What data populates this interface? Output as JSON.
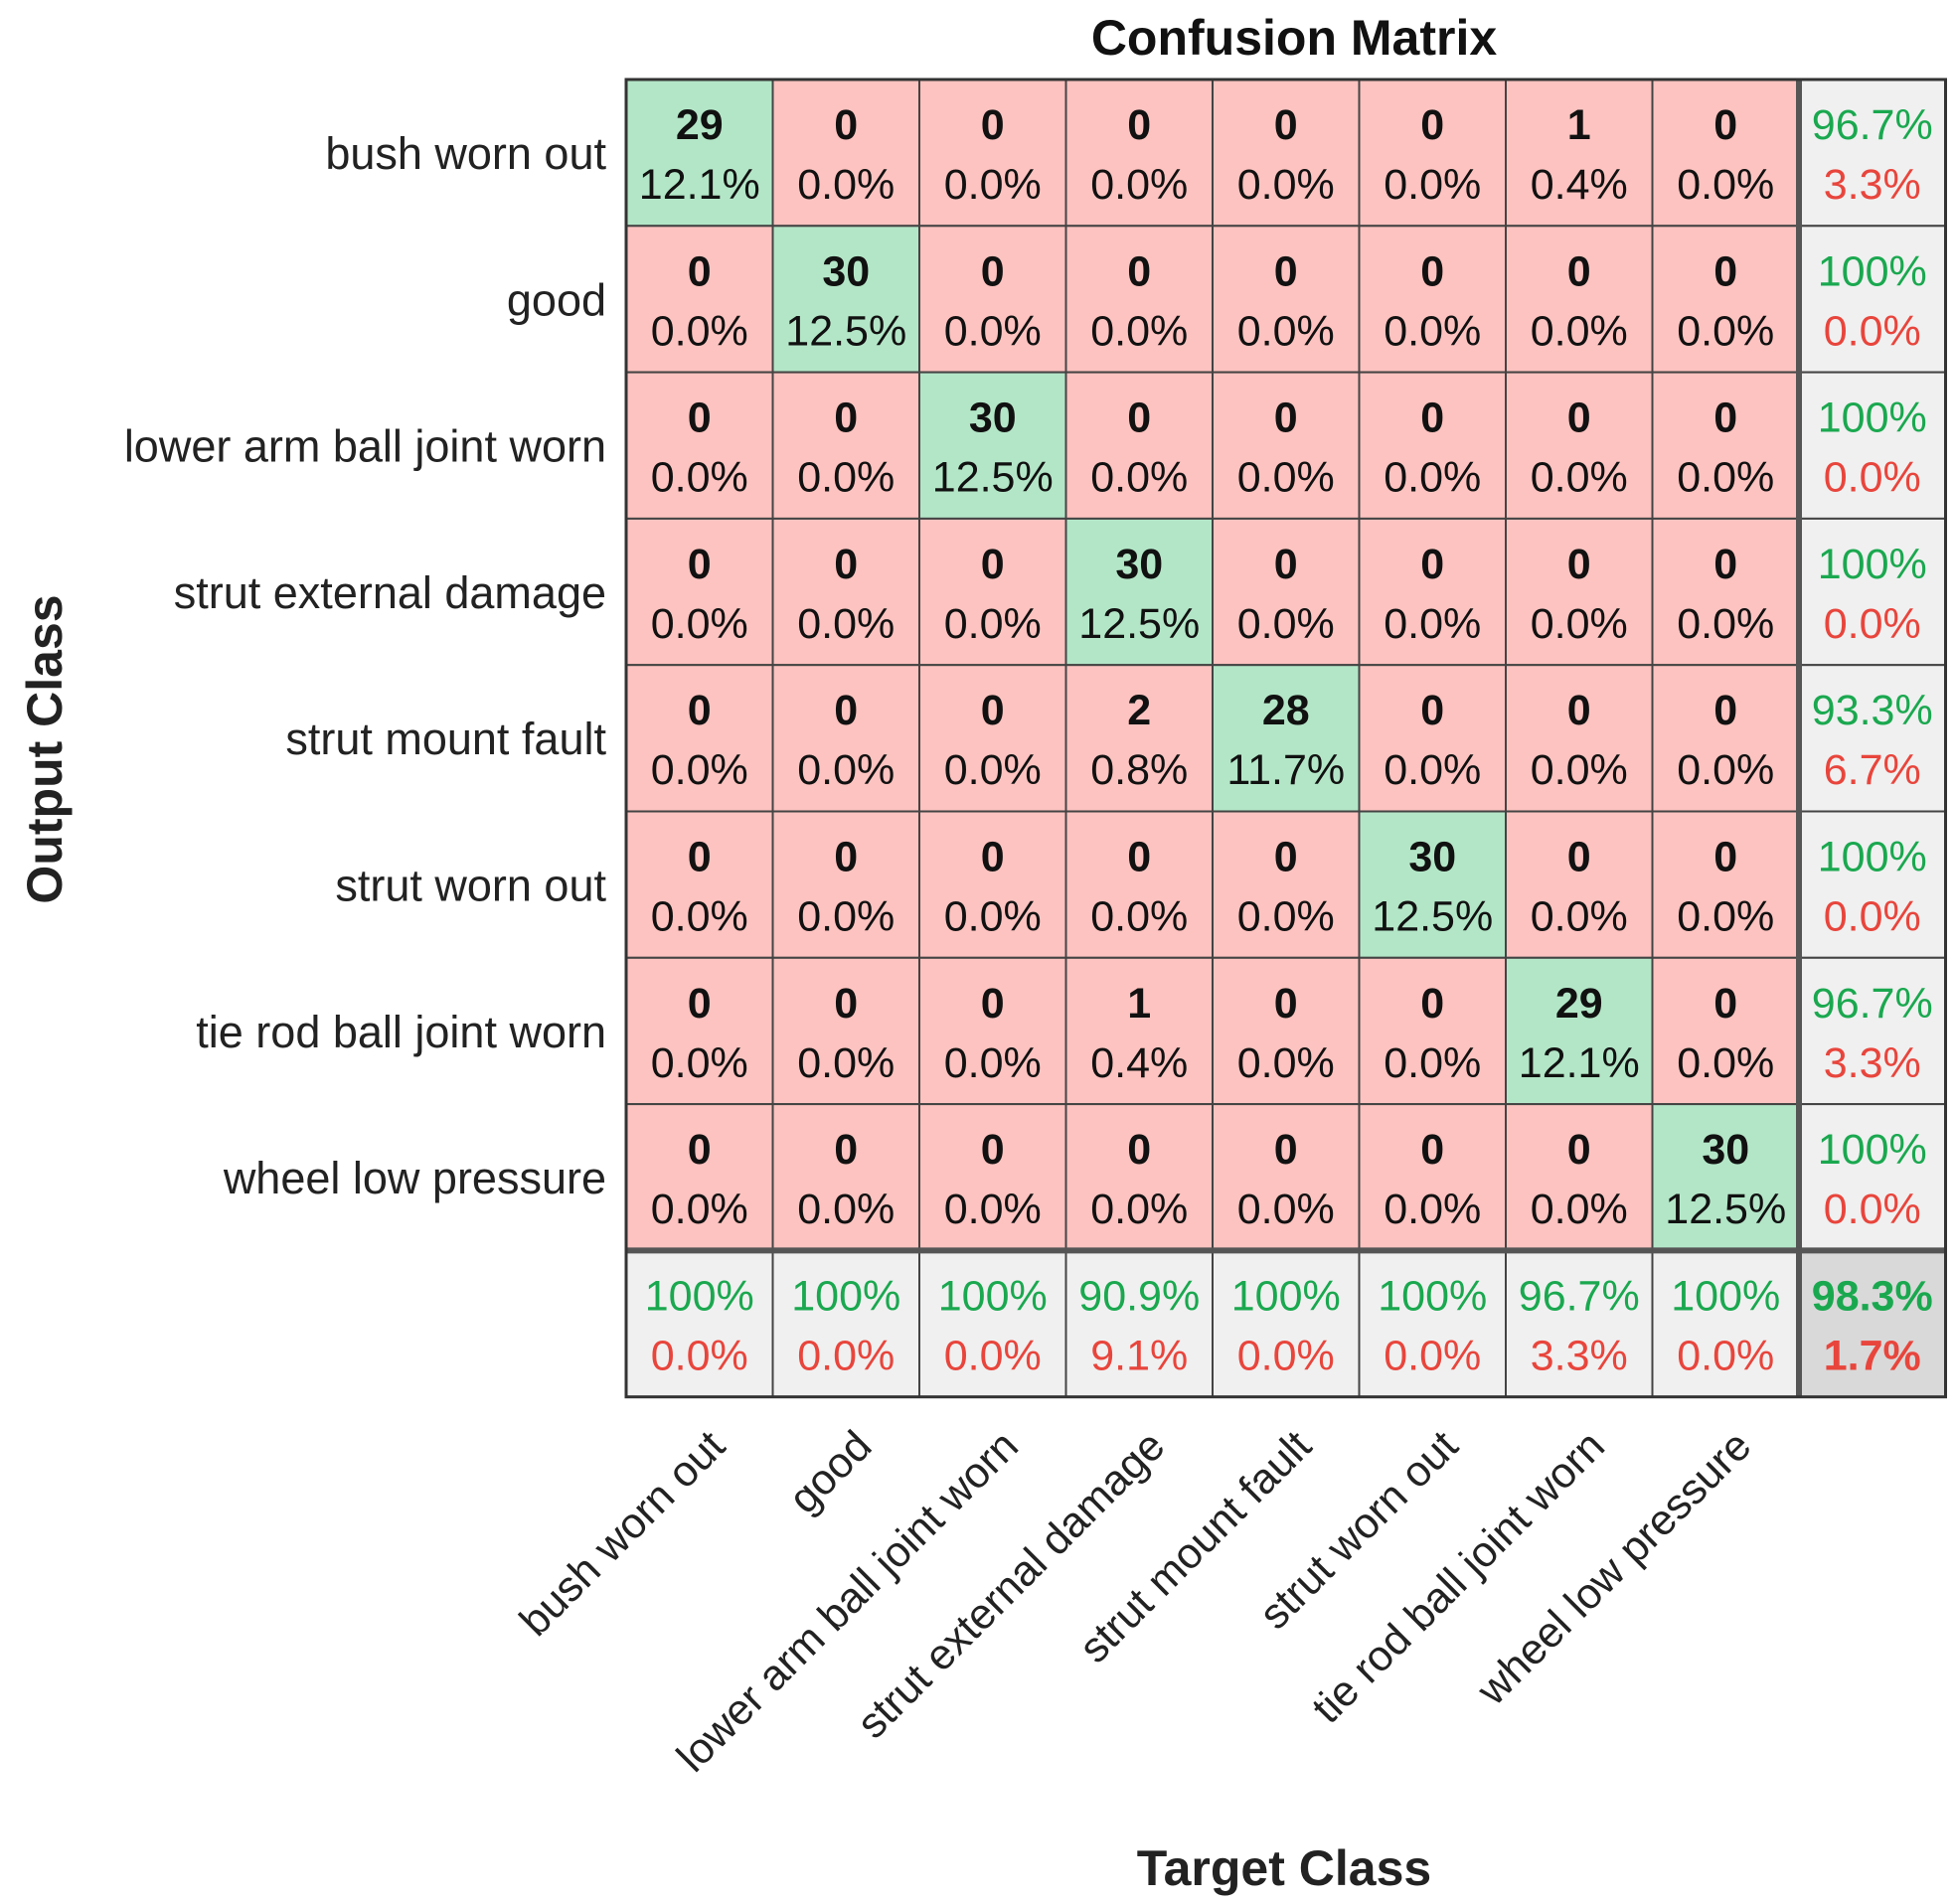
{
  "chart_data": {
    "type": "heatmap",
    "title": "Confusion Matrix",
    "xlabel": "Target Class",
    "ylabel": "Output Class",
    "classes": [
      "bush worn out",
      "good",
      "lower arm ball joint worn",
      "strut external damage",
      "strut mount fault",
      "strut worn out",
      "tie rod ball joint worn",
      "wheel low pressure"
    ],
    "counts": [
      [
        29,
        0,
        0,
        0,
        0,
        0,
        1,
        0
      ],
      [
        0,
        30,
        0,
        0,
        0,
        0,
        0,
        0
      ],
      [
        0,
        0,
        30,
        0,
        0,
        0,
        0,
        0
      ],
      [
        0,
        0,
        0,
        30,
        0,
        0,
        0,
        0
      ],
      [
        0,
        0,
        0,
        2,
        28,
        0,
        0,
        0
      ],
      [
        0,
        0,
        0,
        0,
        0,
        30,
        0,
        0
      ],
      [
        0,
        0,
        0,
        1,
        0,
        0,
        29,
        0
      ],
      [
        0,
        0,
        0,
        0,
        0,
        0,
        0,
        30
      ]
    ],
    "percents": [
      [
        "12.1%",
        "0.0%",
        "0.0%",
        "0.0%",
        "0.0%",
        "0.0%",
        "0.4%",
        "0.0%"
      ],
      [
        "0.0%",
        "12.5%",
        "0.0%",
        "0.0%",
        "0.0%",
        "0.0%",
        "0.0%",
        "0.0%"
      ],
      [
        "0.0%",
        "0.0%",
        "12.5%",
        "0.0%",
        "0.0%",
        "0.0%",
        "0.0%",
        "0.0%"
      ],
      [
        "0.0%",
        "0.0%",
        "0.0%",
        "12.5%",
        "0.0%",
        "0.0%",
        "0.0%",
        "0.0%"
      ],
      [
        "0.0%",
        "0.0%",
        "0.0%",
        "0.8%",
        "11.7%",
        "0.0%",
        "0.0%",
        "0.0%"
      ],
      [
        "0.0%",
        "0.0%",
        "0.0%",
        "0.0%",
        "0.0%",
        "12.5%",
        "0.0%",
        "0.0%"
      ],
      [
        "0.0%",
        "0.0%",
        "0.0%",
        "0.4%",
        "0.0%",
        "0.0%",
        "12.1%",
        "0.0%"
      ],
      [
        "0.0%",
        "0.0%",
        "0.0%",
        "0.0%",
        "0.0%",
        "0.0%",
        "0.0%",
        "12.5%"
      ]
    ],
    "row_summary": [
      [
        "96.7%",
        "3.3%"
      ],
      [
        "100%",
        "0.0%"
      ],
      [
        "100%",
        "0.0%"
      ],
      [
        "100%",
        "0.0%"
      ],
      [
        "93.3%",
        "6.7%"
      ],
      [
        "100%",
        "0.0%"
      ],
      [
        "96.7%",
        "3.3%"
      ],
      [
        "100%",
        "0.0%"
      ]
    ],
    "col_summary": [
      [
        "100%",
        "0.0%"
      ],
      [
        "100%",
        "0.0%"
      ],
      [
        "100%",
        "0.0%"
      ],
      [
        "90.9%",
        "9.1%"
      ],
      [
        "100%",
        "0.0%"
      ],
      [
        "100%",
        "0.0%"
      ],
      [
        "96.7%",
        "3.3%"
      ],
      [
        "100%",
        "0.0%"
      ]
    ],
    "overall": [
      "98.3%",
      "1.7%"
    ]
  },
  "colors": {
    "diagonal": "#b3e6c7",
    "off_diagonal": "#fdc3c0",
    "summary": "#f0f0f0",
    "overall": "#d9d9d9",
    "good_text": "#1aa84f",
    "bad_text": "#e8453c",
    "grid": "#444444"
  }
}
